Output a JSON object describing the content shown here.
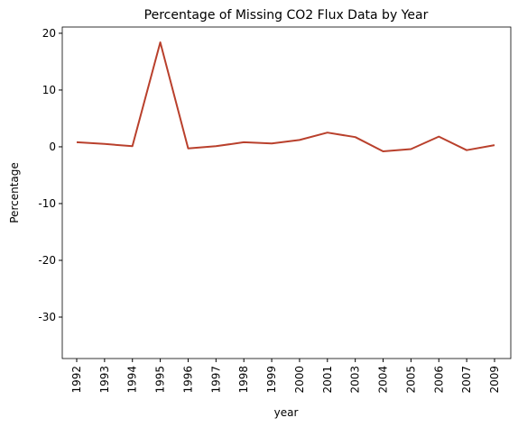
{
  "chart_data": {
    "type": "line",
    "title": "Percentage of Missing CO2 Flux Data by Year",
    "x_label": "year",
    "y_label": "Percentage",
    "categories": [
      "1992",
      "1993",
      "1994",
      "1995",
      "1996",
      "1997",
      "1998",
      "1999",
      "2000",
      "2001",
      "2003",
      "2004",
      "2005",
      "2006",
      "2007",
      "2009"
    ],
    "series": [
      {
        "name": "Percentage",
        "color": "#b9402c",
        "values": [
          0.8,
          0.5,
          0.1,
          18.4,
          -0.3,
          0.1,
          0.8,
          0.6,
          1.2,
          2.5,
          1.7,
          -0.8,
          -0.4,
          1.8,
          -0.6,
          0.3
        ]
      }
    ],
    "ylim": [
      -37.3,
      21.1
    ],
    "yticks": [
      -30,
      -20,
      -10,
      0,
      10,
      20
    ],
    "grid": false
  }
}
